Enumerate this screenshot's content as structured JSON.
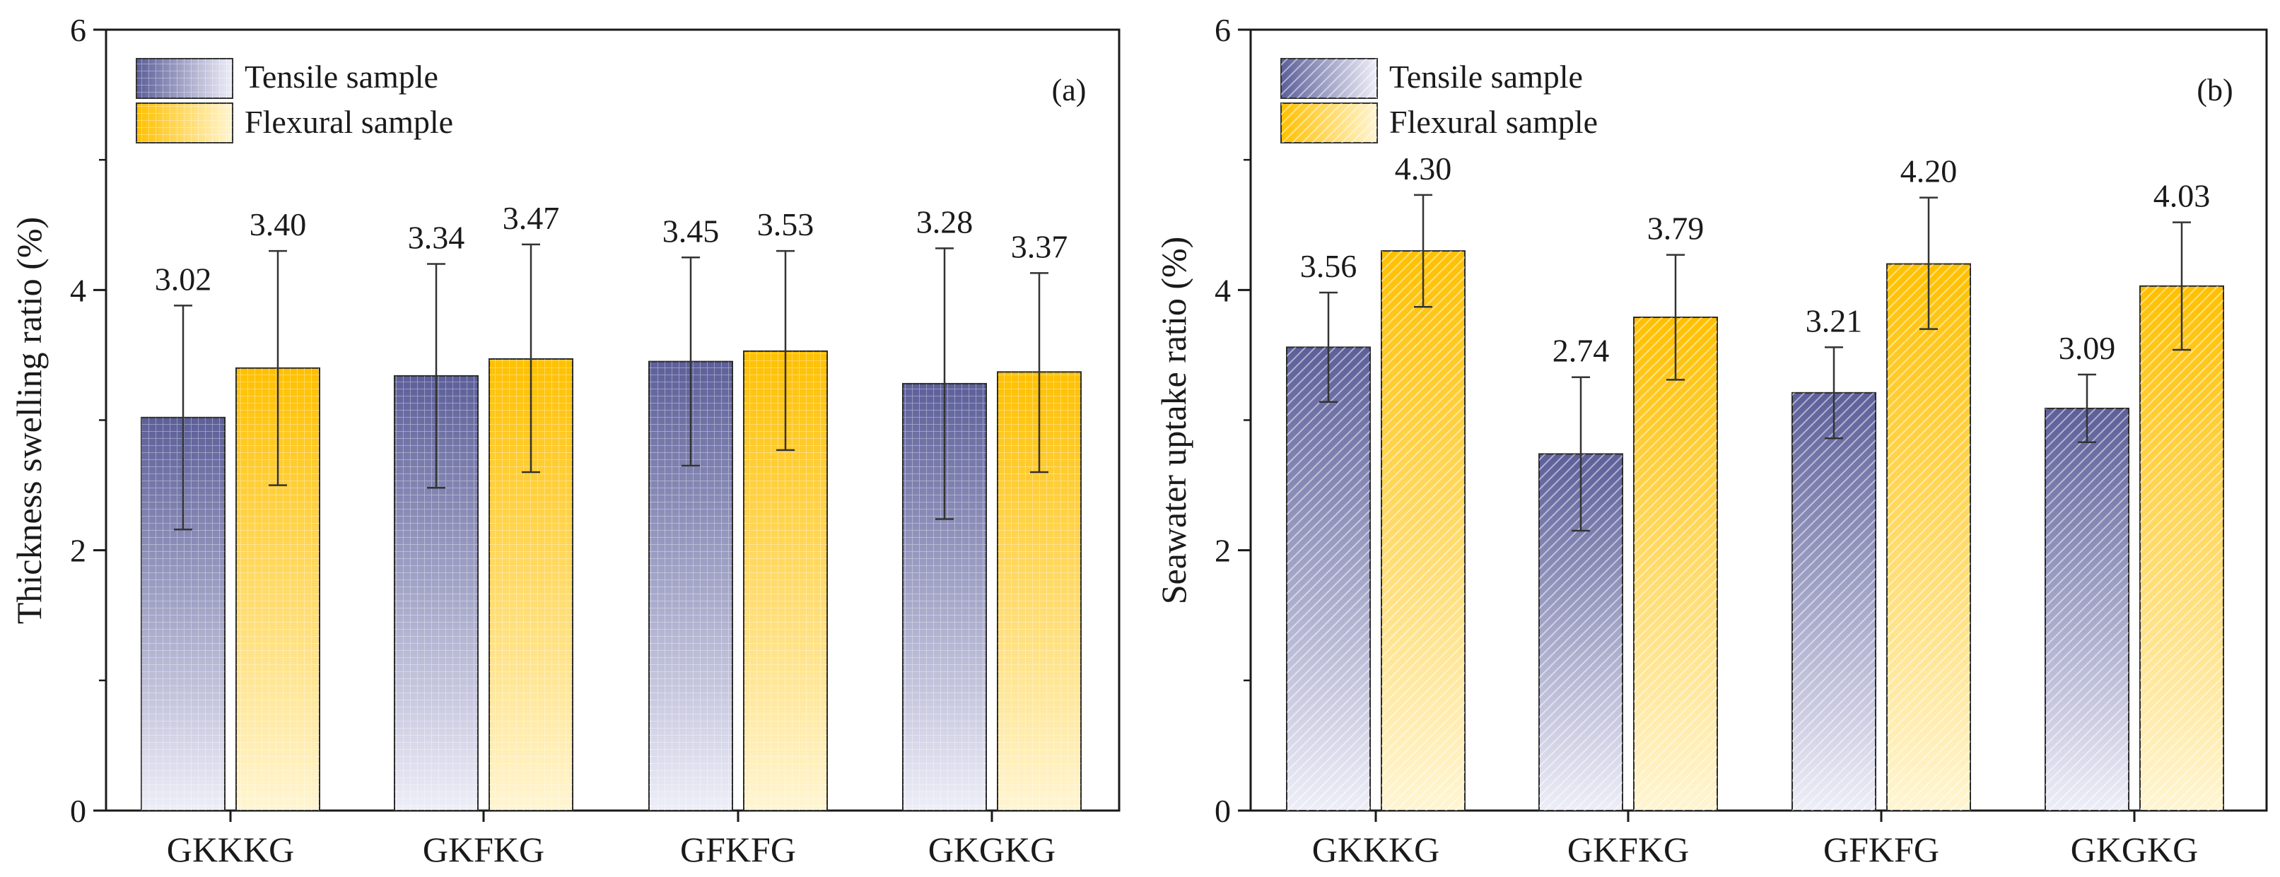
{
  "colors": {
    "tensile_dark": "#5c5f99",
    "tensile_light": "#eeeef8",
    "flexural_dark": "#ffc000",
    "flexural_light": "#fff5d2",
    "axis": "#1a1a1a",
    "error_bar": "#333333"
  },
  "chart_data": [
    {
      "type": "bar",
      "panel_label": "(a)",
      "ylabel": "Thickness swelling ratio (%)",
      "xlabel": "",
      "ylim": [
        0,
        6
      ],
      "yticks": [
        0,
        2,
        4,
        6
      ],
      "grid": false,
      "legend_position": "top-left",
      "pattern": "grid",
      "categories": [
        "GKKKG",
        "GKFKG",
        "GFKFG",
        "GKGKG"
      ],
      "series": [
        {
          "name": "Tensile sample",
          "values": [
            3.02,
            3.34,
            3.45,
            3.28
          ],
          "labels": [
            "3.02",
            "3.34",
            "3.45",
            "3.28"
          ],
          "error_low": [
            2.16,
            2.48,
            2.65,
            2.24
          ],
          "error_high": [
            3.88,
            4.2,
            4.25,
            4.32
          ]
        },
        {
          "name": "Flexural sample",
          "values": [
            3.4,
            3.47,
            3.53,
            3.37
          ],
          "labels": [
            "3.40",
            "3.47",
            "3.53",
            "3.37"
          ],
          "error_low": [
            2.5,
            2.6,
            2.77,
            2.6
          ],
          "error_high": [
            4.3,
            4.35,
            4.3,
            4.13
          ]
        }
      ]
    },
    {
      "type": "bar",
      "panel_label": "(b)",
      "ylabel": "Seawater uptake ratio (%)",
      "xlabel": "",
      "ylim": [
        0,
        6
      ],
      "yticks": [
        0,
        2,
        4,
        6
      ],
      "grid": false,
      "legend_position": "top-left",
      "pattern": "diagonal",
      "categories": [
        "GKKKG",
        "GKFKG",
        "GFKFG",
        "GKGKG"
      ],
      "series": [
        {
          "name": "Tensile sample",
          "values": [
            3.56,
            2.74,
            3.21,
            3.09
          ],
          "labels": [
            "3.56",
            "2.74",
            "3.21",
            "3.09"
          ],
          "error_low": [
            3.14,
            2.15,
            2.86,
            2.83
          ],
          "error_high": [
            3.98,
            3.33,
            3.56,
            3.35
          ]
        },
        {
          "name": "Flexural sample",
          "values": [
            4.3,
            3.79,
            4.2,
            4.03
          ],
          "labels": [
            "4.30",
            "3.79",
            "4.20",
            "4.03"
          ],
          "error_low": [
            3.87,
            3.31,
            3.7,
            3.54
          ],
          "error_high": [
            4.73,
            4.27,
            4.71,
            4.52
          ]
        }
      ]
    }
  ]
}
